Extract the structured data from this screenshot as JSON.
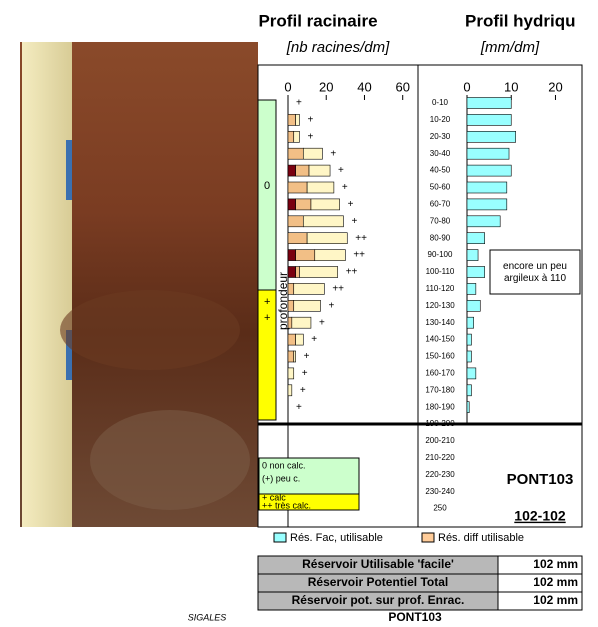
{
  "chart_data": [
    {
      "type": "bar",
      "orientation": "horizontal",
      "stacked": true,
      "title": "Profil racinaire",
      "subtitle": "[nb racines/dm]",
      "axis_label": "profondeur",
      "xlim": [
        0,
        68
      ],
      "xticks": [
        0,
        20,
        40,
        60
      ],
      "series": [
        {
          "color": "#7a0010",
          "values": [
            0,
            0,
            0,
            0,
            4,
            0,
            4,
            0,
            0,
            4,
            4,
            0,
            0,
            0,
            0,
            0,
            0,
            0,
            0
          ]
        },
        {
          "color": "#f2bf86",
          "values": [
            0,
            4,
            3,
            8,
            7,
            10,
            8,
            8,
            10,
            10,
            2,
            3,
            3,
            2,
            4,
            3,
            0,
            0,
            0
          ]
        },
        {
          "color": "#fff6c6",
          "values": [
            0,
            2,
            3,
            10,
            11,
            14,
            15,
            21,
            21,
            16,
            20,
            16,
            14,
            10,
            4,
            1,
            3,
            2,
            0
          ]
        }
      ],
      "row_marks": [
        "+",
        "+",
        "+",
        "+",
        "+",
        "+",
        "+",
        "+",
        "++",
        "++",
        "++",
        "++",
        "+",
        "+",
        "+",
        "+",
        "+",
        "+",
        "+"
      ],
      "calc_zones": [
        "0",
        "+",
        "+"
      ],
      "calc_legend": [
        "0 non calc.",
        "(+) peu c.",
        "+ calc",
        "++ très calc."
      ]
    },
    {
      "type": "bar",
      "orientation": "horizontal",
      "title": "Profil hydriqu",
      "subtitle": "[mm/dm]",
      "xlim": [
        0,
        26
      ],
      "xticks": [
        0,
        10,
        20
      ],
      "categories": [
        "0-10",
        "10-20",
        "20-30",
        "30-40",
        "40-50",
        "50-60",
        "60-70",
        "70-80",
        "80-90",
        "90-100",
        "100-110",
        "110-120",
        "120-130",
        "130-140",
        "140-150",
        "150-160",
        "160-170",
        "170-180",
        "180-190",
        "190-200",
        "200-210",
        "210-220",
        "220-230",
        "230-240",
        "250"
      ],
      "series": [
        {
          "color": "#99ffff",
          "values": [
            10,
            10,
            11,
            9.5,
            10,
            9,
            9,
            7.5,
            4,
            2.5,
            4,
            2,
            3,
            1.5,
            1,
            1,
            2,
            1,
            0.5,
            null,
            null,
            null,
            null,
            null,
            null
          ]
        }
      ],
      "legend": [
        {
          "label": "Rés. Fac, utilisable",
          "color": "#99ffff"
        },
        {
          "label": "Rés. diff utilisable",
          "color": "#ffcc99"
        }
      ],
      "annotation": "encore un peu argileux à 110",
      "site": "PONT103",
      "code": "102-102"
    }
  ],
  "reservoirs": {
    "rows": [
      [
        "Réservoir Utilisable 'facile'",
        "102 mm"
      ],
      [
        "Réservoir Potentiel Total",
        "102 mm"
      ],
      [
        "Réservoir pot. sur prof. Enrac.",
        "102 mm"
      ]
    ]
  },
  "footer": {
    "logo": "SIGALES",
    "site": "PONT103"
  }
}
